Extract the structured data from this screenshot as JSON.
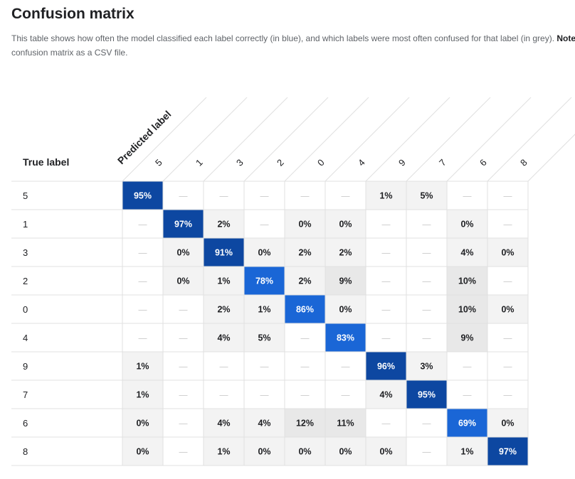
{
  "page": {
    "title": "Confusion matrix",
    "description_before": "This table shows how often the model classified each label correctly (in blue), and which labels were most often confused for that label (in grey). ",
    "description_note": "Note",
    "description_after": "confusion matrix as a CSV file."
  },
  "chart_data": {
    "type": "heatmap",
    "title": "Confusion matrix",
    "xlabel": "Predicted label",
    "ylabel": "True label",
    "empty_symbol": "—",
    "labels": [
      "5",
      "1",
      "3",
      "2",
      "0",
      "4",
      "9",
      "7",
      "6",
      "8"
    ],
    "values": [
      [
        95,
        null,
        null,
        null,
        null,
        null,
        1,
        5,
        null,
        null
      ],
      [
        null,
        97,
        2,
        null,
        0,
        0,
        null,
        null,
        0,
        null
      ],
      [
        null,
        0,
        91,
        0,
        2,
        2,
        null,
        null,
        4,
        0
      ],
      [
        null,
        0,
        1,
        78,
        2,
        9,
        null,
        null,
        10,
        null
      ],
      [
        null,
        null,
        2,
        1,
        86,
        0,
        null,
        null,
        10,
        0
      ],
      [
        null,
        null,
        4,
        5,
        null,
        83,
        null,
        null,
        9,
        null
      ],
      [
        1,
        null,
        null,
        null,
        null,
        null,
        96,
        3,
        null,
        null
      ],
      [
        1,
        null,
        null,
        null,
        null,
        null,
        4,
        95,
        null,
        null
      ],
      [
        0,
        null,
        4,
        4,
        12,
        11,
        null,
        null,
        69,
        0
      ],
      [
        0,
        null,
        1,
        0,
        0,
        0,
        0,
        null,
        1,
        97
      ]
    ],
    "colors": {
      "diagonal_dark": "#0d47a1",
      "diagonal_light": "#1a66d6",
      "offdiag_light": "#f3f3f3",
      "offdiag_dark": "#e8e8e8",
      "empty": "#ffffff",
      "grid": "#e0e0e0"
    }
  }
}
